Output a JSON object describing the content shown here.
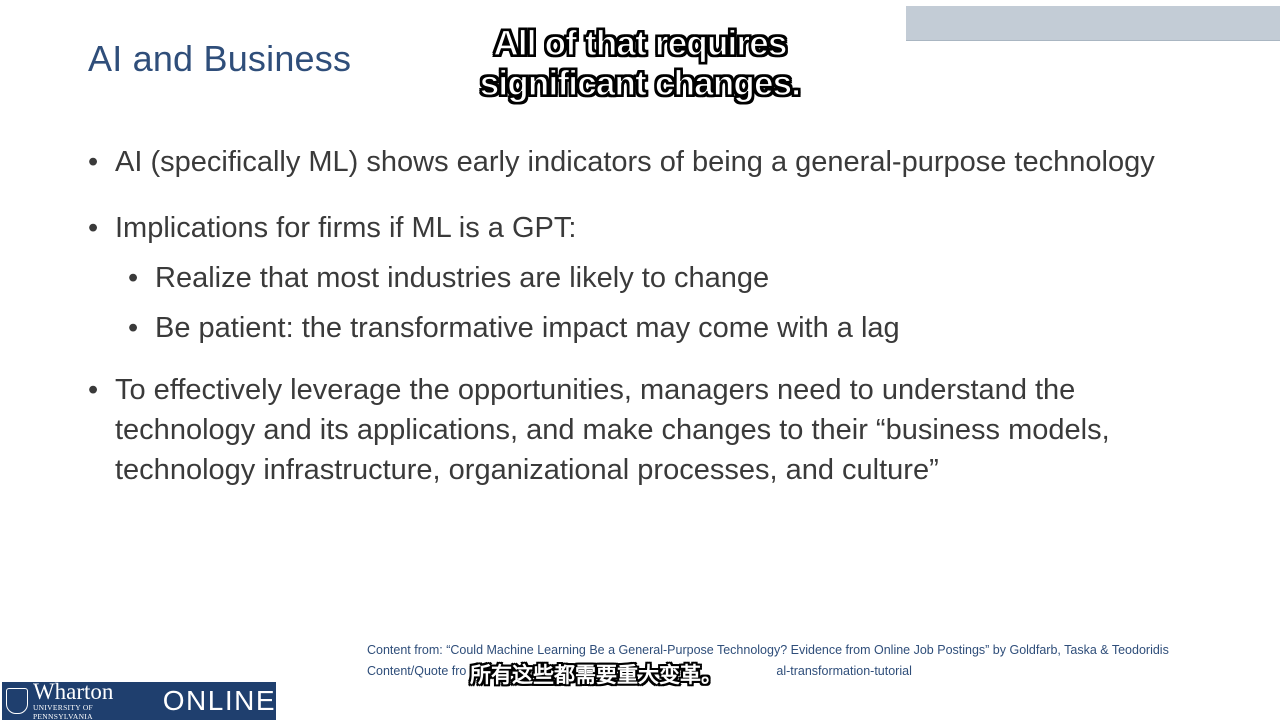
{
  "slide": {
    "title": "AI and Business",
    "caption_en_line1": "All of that requires",
    "caption_en_line2": "significant changes.",
    "bullets": [
      "AI (specifically ML) shows early indicators of being a general-purpose technology",
      "Implications for firms if ML is a GPT:",
      "To effectively leverage the opportunities, managers need to understand the technology and its applications, and make changes to their “business models, technology infrastructure, organizational processes, and culture”"
    ],
    "sub_bullets": [
      "Realize that most industries are likely to change",
      "Be patient: the transformative impact may come with a lag"
    ],
    "sources": [
      "Content from: “Could Machine Learning Be a General-Purpose Technology? Evidence from Online Job Postings” by Goldfarb, Taska & Teodoridis",
      "Content/Quote fro",
      "al-transformation-tutorial"
    ],
    "caption_zh": "所有这些都需要重大变革。"
  },
  "logo": {
    "name": "Wharton",
    "subline": "University of Pennsylvania",
    "online": "ONLINE"
  },
  "colors": {
    "title": "#2f4e7a",
    "body_text": "#3a3a3a",
    "logo_bg": "#1f3f6e",
    "top_bar": "#c3ccd6"
  }
}
